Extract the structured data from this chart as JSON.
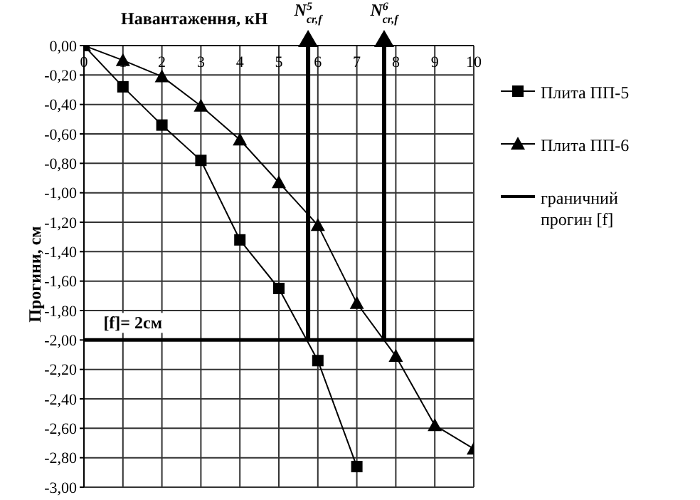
{
  "chart_data": {
    "type": "line",
    "xlabel": "Навантаження, кН",
    "ylabel": "Прогини, см",
    "xlim": [
      0,
      10
    ],
    "xticks": [
      0,
      1,
      2,
      3,
      4,
      5,
      6,
      7,
      8,
      9,
      10
    ],
    "ylim": [
      -3,
      0
    ],
    "yticks": [
      {
        "value": 0,
        "label": "0,00"
      },
      {
        "value": -0.2,
        "label": "-0,20"
      },
      {
        "value": -0.4,
        "label": "-0,40"
      },
      {
        "value": -0.6,
        "label": "-0,60"
      },
      {
        "value": -0.8,
        "label": "-0,80"
      },
      {
        "value": -1,
        "label": "-1,00"
      },
      {
        "value": -1.2,
        "label": "-1,20"
      },
      {
        "value": -1.4,
        "label": "-1,40"
      },
      {
        "value": -1.6,
        "label": "-1,60"
      },
      {
        "value": -1.8,
        "label": "-1,80"
      },
      {
        "value": -2,
        "label": "-2,00"
      },
      {
        "value": -2.2,
        "label": "-2,20"
      },
      {
        "value": -2.4,
        "label": "-2,40"
      },
      {
        "value": -2.6,
        "label": "-2,60"
      },
      {
        "value": -2.8,
        "label": "-2,80"
      },
      {
        "value": -3,
        "label": "-3,00"
      }
    ],
    "grid": true,
    "legend": "right",
    "series": [
      {
        "name": "Плита ПП-5",
        "color": "#000000",
        "marker": "square",
        "x": [
          0,
          1,
          2,
          3,
          4,
          5,
          6,
          7
        ],
        "values": [
          0,
          -0.28,
          -0.54,
          -0.78,
          -1.32,
          -1.65,
          -2.14,
          -2.86
        ]
      },
      {
        "name": "Плита ПП-6",
        "color": "#000000",
        "marker": "triangle",
        "x": [
          0,
          1,
          2,
          3,
          4,
          5,
          6,
          7,
          8,
          9,
          10
        ],
        "values": [
          0,
          -0.1,
          -0.21,
          -0.41,
          -0.64,
          -0.93,
          -1.22,
          -1.75,
          -2.11,
          -2.58,
          -2.74
        ]
      },
      {
        "name": "граничний прогин [f]",
        "color": "#000000",
        "marker": "none",
        "x": [
          0,
          10
        ],
        "values": [
          -2,
          -2
        ]
      }
    ],
    "ref_lines": [
      {
        "axis": "x",
        "value": 5.75,
        "label": "N$^{5}$$_{cr,f}$"
      },
      {
        "axis": "x",
        "value": 7.7,
        "label": "N$^{6}$$_{cr,f}$"
      }
    ],
    "annotations": [
      {
        "text": "[f]= 2см",
        "x": 0.5,
        "y": -2
      }
    ]
  }
}
